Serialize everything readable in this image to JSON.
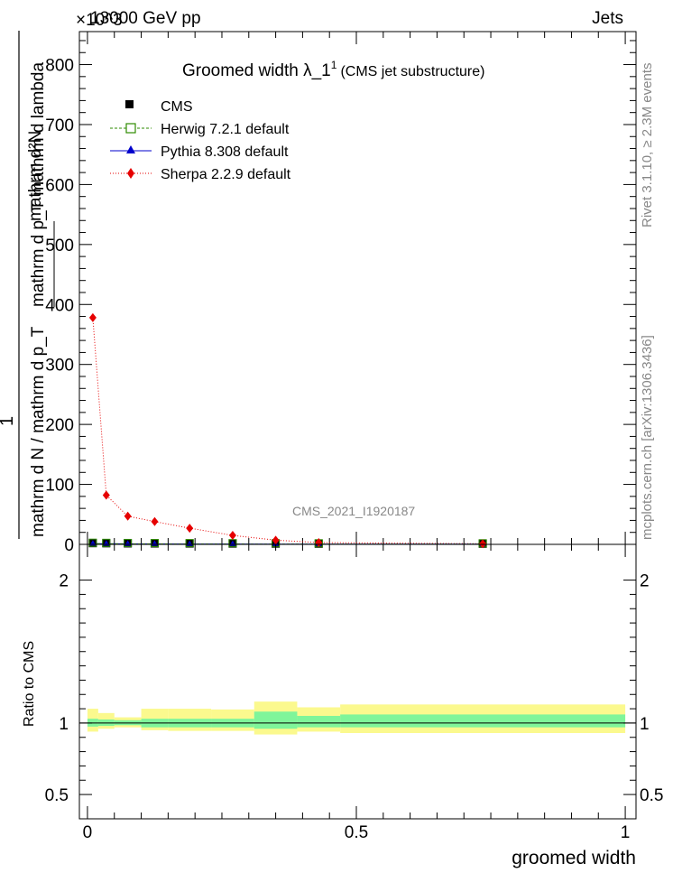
{
  "header": {
    "left": "13000 GeV pp",
    "right": "Jets",
    "exponent": "×10^3"
  },
  "side_labels": {
    "top": "Rivet 3.1.10, ≥ 2.3M events",
    "bottom": "mcplots.cern.ch [arXiv:1306.3436]"
  },
  "watermark": "CMS_2021_I1920187",
  "colors": {
    "cms": "#000000",
    "herwig": "#2e8b00",
    "pythia": "#0000cc",
    "sherpa": "#e60000",
    "band_inner": "#7ff59a",
    "band_outer": "#fbf98e"
  },
  "chart_data": [
    {
      "type": "scatter",
      "title": "Groomed width  λ_1",
      "title_sup": "1",
      "subtitle": "(CMS jet substructure)",
      "ylabel_top": "1",
      "ylabel_num": "mathrm d²N",
      "ylabel_den_a": "mathrm d p_T mathrm d lambda",
      "ylabel_den_b": "mathrm d N / mathrm d p_T",
      "xlim": [
        -0.015,
        1.02
      ],
      "ylim": [
        0,
        855
      ],
      "ytick_values": [
        0,
        100,
        200,
        300,
        400,
        500,
        600,
        700,
        800
      ],
      "ytick_labels": [
        "0",
        "100",
        "200",
        "300",
        "400",
        "500",
        "600",
        "700",
        "800"
      ],
      "legend_position": "top-left",
      "series": [
        {
          "name": "CMS",
          "marker": "square",
          "x": [
            0.01,
            0.035,
            0.075,
            0.125,
            0.19,
            0.27,
            0.35,
            0.43,
            0.735
          ],
          "values": [
            1.2,
            1.0,
            0.8,
            0.7,
            0.6,
            0.5,
            0.4,
            0.3,
            0.3
          ]
        },
        {
          "name": "Herwig 7.2.1 default",
          "marker": "open-square",
          "x": [
            0.01,
            0.035,
            0.075,
            0.125,
            0.19,
            0.27,
            0.35,
            0.43,
            0.735
          ],
          "values": [
            1.2,
            1.0,
            0.8,
            0.7,
            0.6,
            0.5,
            0.4,
            0.3,
            0.3
          ]
        },
        {
          "name": "Pythia 8.308 default",
          "marker": "triangle",
          "x": [
            0.01,
            0.035,
            0.075,
            0.125,
            0.19,
            0.27,
            0.35,
            0.43,
            0.735
          ],
          "values": [
            1.2,
            1.0,
            0.8,
            0.7,
            0.6,
            0.5,
            0.4,
            0.3,
            0.3
          ]
        },
        {
          "name": "Sherpa 2.2.9 default",
          "marker": "diamond",
          "x": [
            0.01,
            0.035,
            0.075,
            0.125,
            0.19,
            0.27,
            0.35,
            0.43,
            0.735
          ],
          "values": [
            378,
            82,
            47,
            38,
            27,
            15,
            7,
            3,
            1
          ]
        }
      ]
    },
    {
      "type": "area",
      "ylabel": "Ratio to CMS",
      "xlabel": "groomed width",
      "xlim": [
        -0.015,
        1.02
      ],
      "ylim": [
        0.33,
        2.25
      ],
      "ytick_values": [
        0.5,
        1,
        2
      ],
      "ytick_labels": [
        "0.5",
        "1",
        "2"
      ],
      "xtick_values": [
        0,
        0.5,
        1
      ],
      "xtick_labels": [
        "0",
        "0.5",
        "1"
      ],
      "bins": [
        {
          "lo": 0.0,
          "hi": 0.02,
          "inner": [
            0.975,
            1.03
          ],
          "outer": [
            0.94,
            1.1
          ]
        },
        {
          "lo": 0.02,
          "hi": 0.05,
          "inner": [
            0.98,
            1.025
          ],
          "outer": [
            0.96,
            1.07
          ]
        },
        {
          "lo": 0.05,
          "hi": 0.1,
          "inner": [
            0.985,
            1.02
          ],
          "outer": [
            0.97,
            1.04
          ]
        },
        {
          "lo": 0.1,
          "hi": 0.15,
          "inner": [
            0.97,
            1.03
          ],
          "outer": [
            0.95,
            1.1
          ]
        },
        {
          "lo": 0.15,
          "hi": 0.23,
          "inner": [
            0.97,
            1.03
          ],
          "outer": [
            0.945,
            1.1
          ]
        },
        {
          "lo": 0.23,
          "hi": 0.31,
          "inner": [
            0.97,
            1.03
          ],
          "outer": [
            0.945,
            1.095
          ]
        },
        {
          "lo": 0.31,
          "hi": 0.39,
          "inner": [
            0.96,
            1.08
          ],
          "outer": [
            0.92,
            1.15
          ]
        },
        {
          "lo": 0.39,
          "hi": 0.47,
          "inner": [
            0.97,
            1.05
          ],
          "outer": [
            0.94,
            1.11
          ]
        },
        {
          "lo": 0.47,
          "hi": 1.0,
          "inner": [
            0.97,
            1.06
          ],
          "outer": [
            0.93,
            1.13
          ]
        }
      ]
    }
  ]
}
